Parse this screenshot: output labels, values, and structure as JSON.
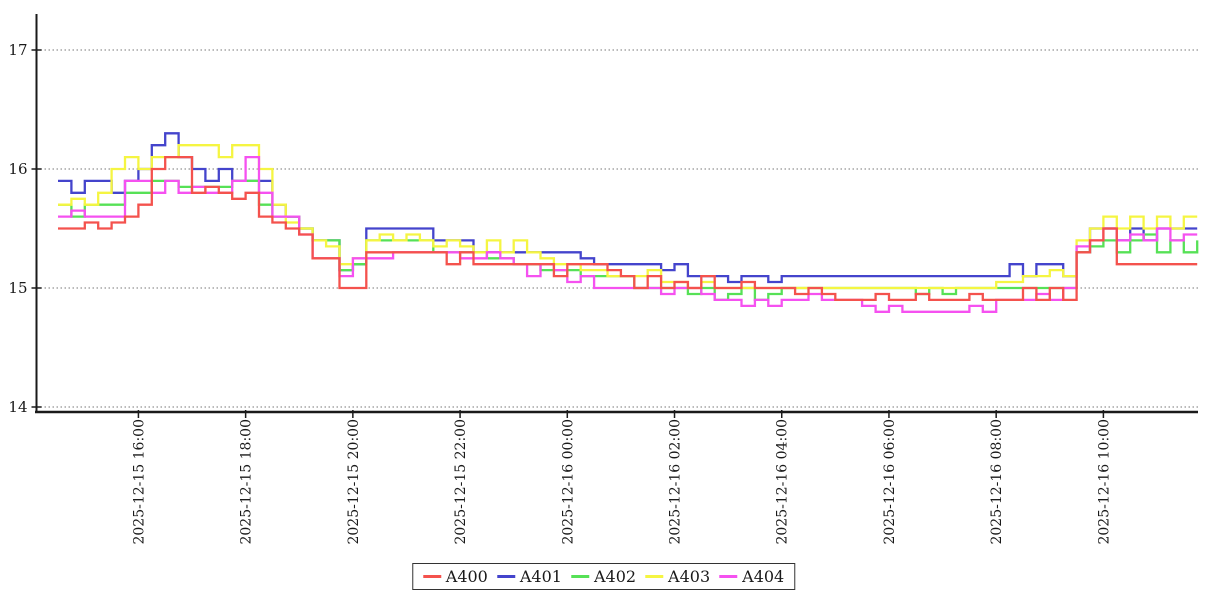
{
  "chart_data": {
    "type": "line",
    "title": "",
    "line_style": "step",
    "grid": true,
    "grid_style": "dotted-horizontal",
    "legend_position": "bottom-center",
    "colors": {
      "background": "#ffffff",
      "axis": "#1a1a1a",
      "gridline": "#777777",
      "text": "#1a1a1a",
      "legend_border": "#333333"
    },
    "x_axis": {
      "start": "2025-12-15 14:30",
      "end": "2025-12-16 11:45",
      "step_minutes": 15,
      "first_tick_offset_minutes": 90,
      "tick_interval_minutes": 120,
      "tick_labels": [
        "2025-12-15 16:00",
        "2025-12-15 18:00",
        "2025-12-15 20:00",
        "2025-12-15 22:00",
        "2025-12-16 00:00",
        "2025-12-16 02:00",
        "2025-12-16 04:00",
        "2025-12-16 06:00",
        "2025-12-16 08:00",
        "2025-12-16 10:00"
      ]
    },
    "y_axis": {
      "min": 14,
      "max": 17.3,
      "ticks": [
        14,
        15,
        16,
        17
      ]
    },
    "series": [
      {
        "name": "A400",
        "color": "#f4524d",
        "values": [
          15.5,
          15.5,
          15.55,
          15.5,
          15.55,
          15.6,
          15.7,
          16.0,
          16.1,
          16.1,
          15.8,
          15.85,
          15.8,
          15.75,
          15.8,
          15.6,
          15.55,
          15.5,
          15.45,
          15.25,
          15.25,
          15.0,
          15.0,
          15.3,
          15.3,
          15.3,
          15.3,
          15.3,
          15.3,
          15.2,
          15.3,
          15.2,
          15.2,
          15.2,
          15.2,
          15.2,
          15.2,
          15.1,
          15.2,
          15.2,
          15.2,
          15.15,
          15.1,
          15.0,
          15.1,
          15.0,
          15.05,
          15.0,
          15.1,
          15.0,
          15.0,
          15.05,
          15.0,
          15.0,
          15.0,
          14.95,
          15.0,
          14.95,
          14.9,
          14.9,
          14.9,
          14.95,
          14.9,
          14.9,
          14.95,
          14.9,
          14.9,
          14.9,
          14.95,
          14.9,
          14.9,
          14.9,
          15.0,
          14.9,
          15.0,
          14.9,
          15.3,
          15.4,
          15.5,
          15.2,
          15.2,
          15.2,
          15.2,
          15.2,
          15.2,
          15.2
        ]
      },
      {
        "name": "A401",
        "color": "#4444cc",
        "values": [
          15.9,
          15.8,
          15.9,
          15.9,
          15.8,
          15.9,
          16.0,
          16.2,
          16.3,
          16.1,
          16.0,
          15.9,
          16.0,
          15.9,
          15.9,
          15.9,
          15.7,
          15.6,
          15.5,
          15.4,
          15.4,
          15.15,
          15.2,
          15.5,
          15.5,
          15.5,
          15.5,
          15.5,
          15.4,
          15.4,
          15.4,
          15.3,
          15.3,
          15.3,
          15.3,
          15.3,
          15.3,
          15.3,
          15.3,
          15.25,
          15.2,
          15.2,
          15.2,
          15.2,
          15.2,
          15.15,
          15.2,
          15.1,
          15.1,
          15.1,
          15.05,
          15.1,
          15.1,
          15.05,
          15.1,
          15.1,
          15.1,
          15.1,
          15.1,
          15.1,
          15.1,
          15.1,
          15.1,
          15.1,
          15.1,
          15.1,
          15.1,
          15.1,
          15.1,
          15.1,
          15.1,
          15.2,
          15.1,
          15.2,
          15.2,
          15.1,
          15.3,
          15.5,
          15.5,
          15.4,
          15.5,
          15.4,
          15.5,
          15.5,
          15.5,
          15.5
        ]
      },
      {
        "name": "A402",
        "color": "#56e156",
        "values": [
          15.7,
          15.6,
          15.7,
          15.7,
          15.7,
          15.8,
          15.8,
          15.9,
          15.9,
          15.85,
          15.85,
          15.85,
          15.85,
          15.9,
          15.9,
          15.7,
          15.6,
          15.6,
          15.5,
          15.4,
          15.4,
          15.15,
          15.2,
          15.4,
          15.4,
          15.4,
          15.4,
          15.4,
          15.3,
          15.3,
          15.3,
          15.3,
          15.25,
          15.25,
          15.2,
          15.2,
          15.15,
          15.15,
          15.15,
          15.1,
          15.1,
          15.1,
          15.1,
          15.0,
          15.0,
          15.0,
          15.0,
          14.95,
          15.0,
          14.9,
          14.95,
          15.0,
          14.9,
          14.95,
          15.0,
          15.0,
          15.0,
          15.0,
          15.0,
          15.0,
          15.0,
          15.0,
          15.0,
          15.0,
          14.95,
          15.0,
          14.95,
          15.0,
          15.0,
          15.0,
          15.0,
          15.0,
          15.0,
          15.0,
          15.0,
          15.0,
          15.3,
          15.35,
          15.4,
          15.3,
          15.4,
          15.45,
          15.3,
          15.4,
          15.3,
          15.4
        ]
      },
      {
        "name": "A403",
        "color": "#f5f542",
        "values": [
          15.7,
          15.75,
          15.7,
          15.8,
          16.0,
          16.1,
          16.0,
          16.1,
          16.1,
          16.2,
          16.2,
          16.2,
          16.1,
          16.2,
          16.2,
          16.0,
          15.7,
          15.55,
          15.5,
          15.4,
          15.35,
          15.2,
          15.25,
          15.4,
          15.45,
          15.4,
          15.45,
          15.4,
          15.35,
          15.4,
          15.35,
          15.3,
          15.4,
          15.3,
          15.4,
          15.3,
          15.25,
          15.2,
          15.2,
          15.15,
          15.15,
          15.1,
          15.1,
          15.1,
          15.15,
          15.05,
          15.05,
          15.0,
          15.05,
          15.0,
          15.0,
          15.0,
          15.0,
          15.0,
          15.0,
          15.0,
          15.0,
          15.0,
          15.0,
          15.0,
          15.0,
          15.0,
          15.0,
          15.0,
          15.0,
          15.0,
          15.0,
          15.0,
          15.0,
          15.0,
          15.05,
          15.05,
          15.1,
          15.1,
          15.15,
          15.1,
          15.4,
          15.5,
          15.6,
          15.5,
          15.6,
          15.5,
          15.6,
          15.5,
          15.6,
          15.6
        ]
      },
      {
        "name": "A404",
        "color": "#f551f0",
        "values": [
          15.6,
          15.65,
          15.6,
          15.6,
          15.6,
          15.9,
          15.9,
          15.8,
          15.9,
          15.8,
          15.85,
          15.8,
          15.8,
          15.9,
          16.1,
          15.8,
          15.6,
          15.6,
          15.45,
          15.25,
          15.25,
          15.1,
          15.25,
          15.25,
          15.25,
          15.3,
          15.3,
          15.3,
          15.3,
          15.3,
          15.25,
          15.25,
          15.3,
          15.25,
          15.2,
          15.1,
          15.2,
          15.15,
          15.05,
          15.1,
          15.0,
          15.0,
          15.0,
          15.0,
          15.0,
          14.95,
          15.0,
          15.0,
          14.95,
          14.9,
          14.9,
          14.85,
          14.9,
          14.85,
          14.9,
          14.9,
          14.95,
          14.9,
          14.9,
          14.9,
          14.85,
          14.8,
          14.85,
          14.8,
          14.8,
          14.8,
          14.8,
          14.8,
          14.85,
          14.8,
          14.9,
          14.9,
          14.9,
          14.95,
          14.9,
          15.0,
          15.35,
          15.4,
          15.5,
          15.4,
          15.45,
          15.4,
          15.5,
          15.4,
          15.45,
          15.45
        ]
      }
    ]
  }
}
